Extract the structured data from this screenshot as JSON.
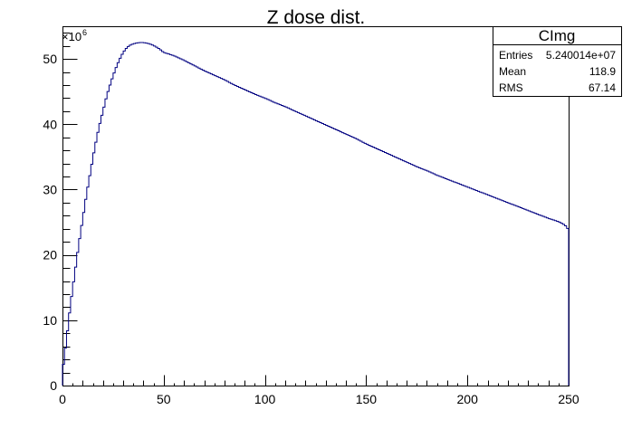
{
  "chart_data": {
    "type": "line",
    "title": "Z dose dist.",
    "xlabel": "",
    "ylabel": "",
    "xlim": [
      0,
      250
    ],
    "ylim": [
      0,
      55
    ],
    "y_multiplier_label": "×10",
    "y_multiplier_exponent": "6",
    "x_ticks": [
      0,
      50,
      100,
      150,
      200,
      250
    ],
    "y_ticks": [
      0,
      10,
      20,
      30,
      40,
      50
    ],
    "grid": false,
    "legend": "none",
    "line_color": "#000080",
    "series": [
      {
        "x": [
          0,
          2,
          4,
          6,
          8,
          10,
          12,
          14,
          16,
          18,
          20,
          22,
          24,
          26,
          28,
          30,
          32,
          34,
          36,
          38,
          40,
          42,
          44,
          46,
          48,
          50,
          55,
          60,
          65,
          70,
          75,
          80,
          85,
          90,
          95,
          100,
          105,
          110,
          115,
          120,
          125,
          130,
          135,
          140,
          145,
          150,
          155,
          160,
          165,
          170,
          175,
          180,
          185,
          190,
          195,
          200,
          205,
          210,
          215,
          220,
          225,
          230,
          235,
          240,
          245,
          248,
          249,
          250
        ],
        "values": [
          2.0,
          7.0,
          12.5,
          17.0,
          21.5,
          25.5,
          29.5,
          33.0,
          36.5,
          39.5,
          42.0,
          44.5,
          46.5,
          48.3,
          49.8,
          51.0,
          51.8,
          52.2,
          52.4,
          52.5,
          52.5,
          52.4,
          52.2,
          51.9,
          51.5,
          51.0,
          50.5,
          49.8,
          49.0,
          48.2,
          47.5,
          46.8,
          46.0,
          45.3,
          44.6,
          44.0,
          43.3,
          42.7,
          42.0,
          41.3,
          40.6,
          39.9,
          39.2,
          38.5,
          37.8,
          37.0,
          36.3,
          35.6,
          34.9,
          34.2,
          33.5,
          32.9,
          32.2,
          31.6,
          31.0,
          30.4,
          29.8,
          29.2,
          28.6,
          28.0,
          27.4,
          26.8,
          26.2,
          25.6,
          25.1,
          24.6,
          24.3,
          23.8
        ]
      }
    ]
  },
  "stats_box": {
    "name": "CImg",
    "rows": [
      {
        "label": "Entries",
        "value": "5.240014e+07"
      },
      {
        "label": "Mean",
        "value": "118.9"
      },
      {
        "label": "RMS",
        "value": "67.14"
      }
    ]
  }
}
